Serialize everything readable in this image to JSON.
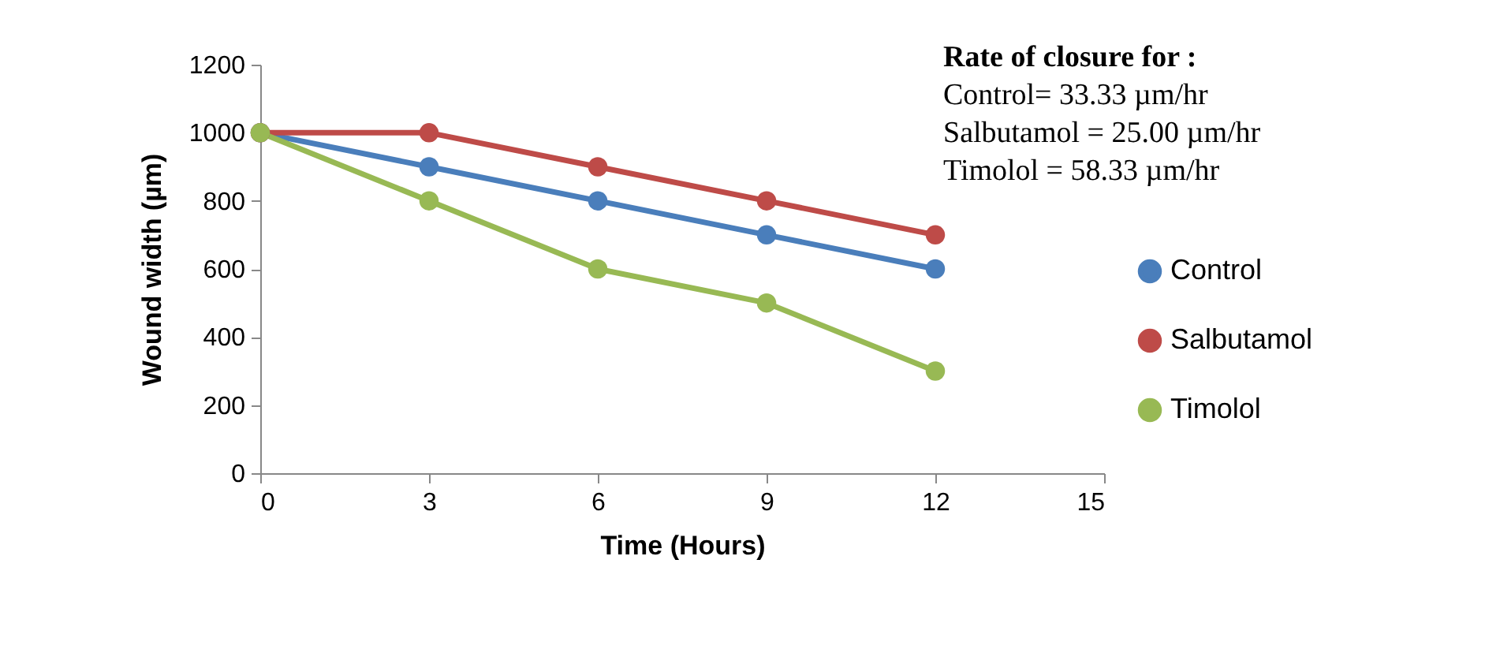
{
  "chart_data": {
    "type": "line",
    "xlabel": "Time (Hours)",
    "ylabel": "Wound width (µm)",
    "annotations": [
      "Rate of closure for :",
      "Control= 33.33 µm/hr",
      "Salbutamol = 25.00 µm/hr",
      "Timolol = 58.33  µm/hr"
    ],
    "x": [
      0,
      3,
      6,
      9,
      12
    ],
    "series": [
      {
        "name": "Control",
        "color": "#4a7ebb",
        "values": [
          1000,
          900,
          800,
          700,
          600
        ]
      },
      {
        "name": "Salbutamol",
        "color": "#be4b48",
        "values": [
          1000,
          1000,
          900,
          800,
          700
        ]
      },
      {
        "name": "Timolol",
        "color": "#98b954",
        "values": [
          1000,
          800,
          600,
          500,
          300
        ]
      }
    ],
    "xlim": [
      0,
      15
    ],
    "xticks": [
      0,
      3,
      6,
      9,
      12,
      15
    ],
    "ylim": [
      0,
      1200
    ],
    "yticks": [
      0,
      200,
      400,
      600,
      800,
      1000,
      1200
    ],
    "legend": "right",
    "marker": "circle"
  }
}
